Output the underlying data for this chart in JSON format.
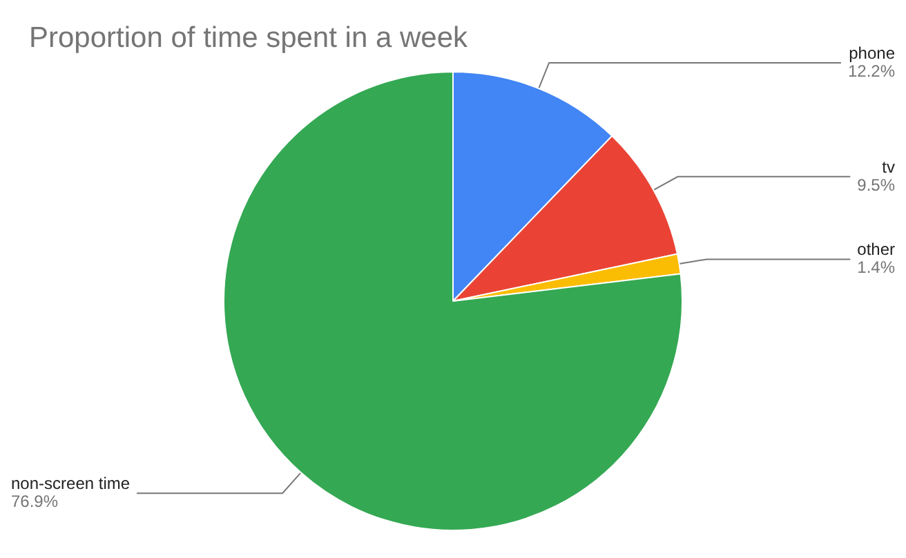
{
  "chart_data": {
    "type": "pie",
    "title": "Proportion of time spent in a week",
    "categories": [
      "phone",
      "tv",
      "other",
      "non-screen time"
    ],
    "values": [
      12.2,
      9.5,
      1.4,
      76.9
    ],
    "colors": [
      "#4285f4",
      "#ea4335",
      "#fbbc04",
      "#34a853"
    ],
    "value_labels": [
      "12.2%",
      "9.5%",
      "1.4%",
      "76.9%"
    ],
    "legend": false
  }
}
